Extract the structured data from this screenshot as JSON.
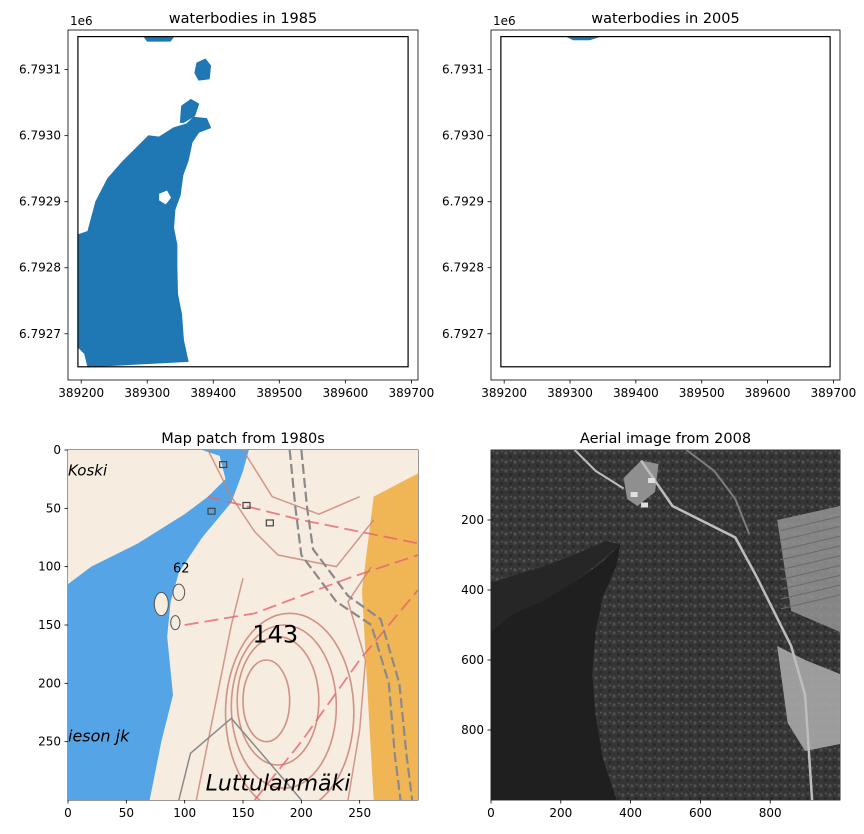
{
  "chart_data": [
    {
      "type": "map",
      "title": "waterbodies in 1985",
      "xlim": [
        389180,
        389710
      ],
      "ylim": [
        6792630,
        6793160
      ],
      "x_ticks": [
        389200,
        389300,
        389400,
        389500,
        389600,
        389700
      ],
      "y_ticks": [
        6792700,
        6792800,
        6792900,
        6793000,
        6793100
      ],
      "y_tick_labels": [
        "6.7927",
        "6.7928",
        "6.7929",
        "6.7930",
        "6.7931"
      ],
      "y_offset_label": "1e6",
      "bounding_box": {
        "x": [
          389195,
          389695
        ],
        "y": [
          6792650,
          6793150
        ]
      },
      "fill_color": "#1f77b4",
      "water_polygons": [
        [
          [
            389195,
            6792850
          ],
          [
            389210,
            6792855
          ],
          [
            389222,
            6792900
          ],
          [
            389240,
            6792935
          ],
          [
            389262,
            6792960
          ],
          [
            389292,
            6792990
          ],
          [
            389302,
            6793000
          ],
          [
            389318,
            6792998
          ],
          [
            389340,
            6793012
          ],
          [
            389360,
            6793018
          ],
          [
            389370,
            6793028
          ],
          [
            389390,
            6793026
          ],
          [
            389396,
            6793012
          ],
          [
            389378,
            6793005
          ],
          [
            389368,
            6792990
          ],
          [
            389362,
            6792962
          ],
          [
            389354,
            6792940
          ],
          [
            389350,
            6792910
          ],
          [
            389342,
            6792888
          ],
          [
            389340,
            6792860
          ],
          [
            389345,
            6792835
          ],
          [
            389345,
            6792800
          ],
          [
            389346,
            6792760
          ],
          [
            389352,
            6792730
          ],
          [
            389355,
            6792690
          ],
          [
            389362,
            6792658
          ],
          [
            389210,
            6792650
          ],
          [
            389205,
            6792670
          ],
          [
            389195,
            6792680
          ]
        ],
        [
          [
            389295,
            6793150
          ],
          [
            389300,
            6793143
          ],
          [
            389335,
            6793143
          ],
          [
            389340,
            6793150
          ]
        ],
        [
          [
            389375,
            6793110
          ],
          [
            389388,
            6793116
          ],
          [
            389396,
            6793106
          ],
          [
            389394,
            6793086
          ],
          [
            389378,
            6793084
          ],
          [
            389372,
            6793095
          ]
        ],
        [
          [
            389350,
            6793020
          ],
          [
            389352,
            6793045
          ],
          [
            389366,
            6793055
          ],
          [
            389378,
            6793048
          ],
          [
            389372,
            6793030
          ],
          [
            389355,
            6793020
          ]
        ]
      ],
      "land_holes": [
        [
          [
            389318,
            6792912
          ],
          [
            389330,
            6792917
          ],
          [
            389336,
            6792906
          ],
          [
            389328,
            6792896
          ],
          [
            389318,
            6792902
          ]
        ]
      ]
    },
    {
      "type": "map",
      "title": "waterbodies in 2005",
      "xlim": [
        389180,
        389710
      ],
      "ylim": [
        6792630,
        6793160
      ],
      "x_ticks": [
        389200,
        389300,
        389400,
        389500,
        389600,
        389700
      ],
      "y_ticks": [
        6792700,
        6792800,
        6792900,
        6793000,
        6793100
      ],
      "y_tick_labels": [
        "6.7927",
        "6.7928",
        "6.7929",
        "6.7930",
        "6.7931"
      ],
      "y_offset_label": "1e6",
      "bounding_box": {
        "x": [
          389195,
          389695
        ],
        "y": [
          6792650,
          6793150
        ]
      },
      "fill_color": "#1f77b4",
      "water_polygons": [
        [
          [
            389295,
            6793150
          ],
          [
            389305,
            6793145
          ],
          [
            389330,
            6793145
          ],
          [
            389345,
            6793150
          ]
        ]
      ]
    },
    {
      "type": "image",
      "title": "Map patch from 1980s",
      "width": 300,
      "height": 300,
      "x_ticks": [
        0,
        50,
        100,
        150,
        200,
        250
      ],
      "y_ticks": [
        0,
        50,
        100,
        150,
        200,
        250
      ],
      "map_labels": [
        "Koski",
        "62",
        "143",
        "ieson jk",
        "Luttulanmäki"
      ],
      "colors": {
        "paper": "#f6ece0",
        "water": "#55a4e6",
        "contour": "#c98272",
        "field": "#f0b656",
        "road": "#8a8a8a",
        "grid": "#e6646e"
      }
    },
    {
      "type": "image",
      "title": "Aerial image from 2008",
      "width": 1000,
      "height": 1000,
      "x_ticks": [
        0,
        200,
        400,
        600,
        800
      ],
      "y_ticks": [
        200,
        400,
        600,
        800
      ],
      "colors": {
        "water": "#1f1f1f",
        "forest": "#3a3a3a",
        "light": "#bdbdbd"
      }
    }
  ]
}
